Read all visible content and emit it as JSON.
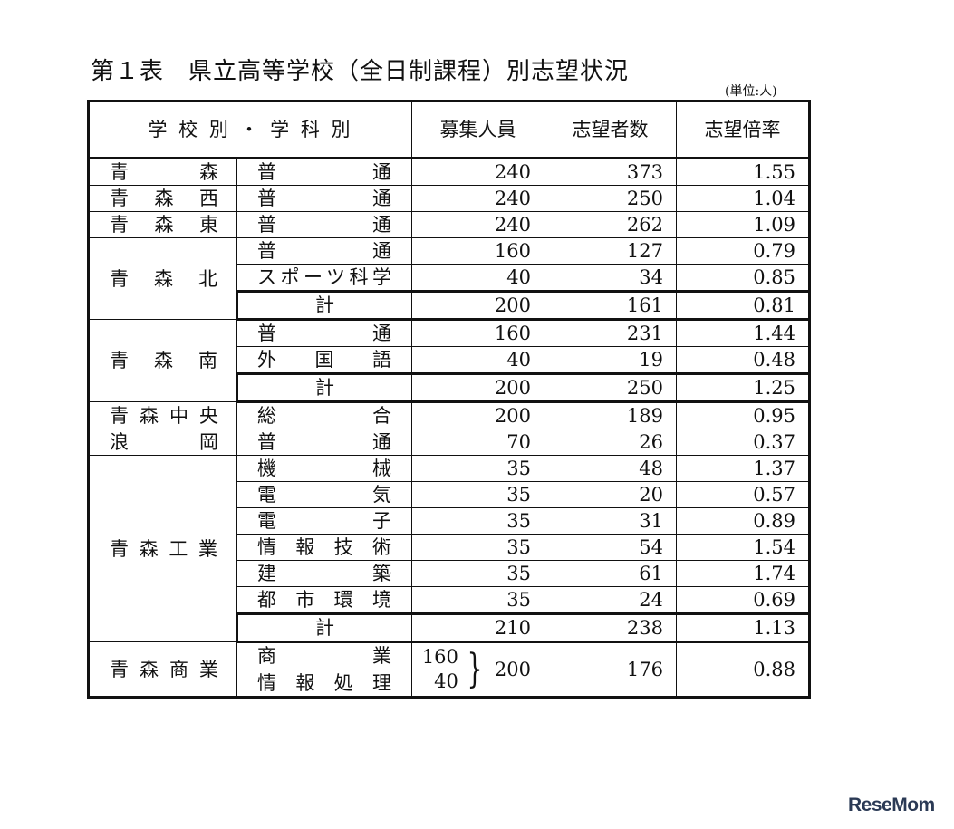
{
  "title": "第１表　県立高等学校（全日制課程）別志望状況",
  "unit": "(単位:人)",
  "headers": {
    "school_dept": "学 校 別 ・ 学 科 別",
    "capacity": "募集人員",
    "applicants": "志望者数",
    "ratio": "志望倍率"
  },
  "schools": [
    {
      "name": "青森",
      "departments": [
        {
          "name": "普通",
          "capacity": "240",
          "applicants": "373",
          "ratio": "1.55"
        }
      ]
    },
    {
      "name": "青森西",
      "departments": [
        {
          "name": "普通",
          "capacity": "240",
          "applicants": "250",
          "ratio": "1.04"
        }
      ]
    },
    {
      "name": "青森東",
      "departments": [
        {
          "name": "普通",
          "capacity": "240",
          "applicants": "262",
          "ratio": "1.09"
        }
      ]
    },
    {
      "name": "青森北",
      "departments": [
        {
          "name": "普通",
          "capacity": "160",
          "applicants": "127",
          "ratio": "0.79"
        },
        {
          "name": "スポーツ科学",
          "capacity": "40",
          "applicants": "34",
          "ratio": "0.85"
        },
        {
          "name": "計",
          "total": true,
          "capacity": "200",
          "applicants": "161",
          "ratio": "0.81"
        }
      ]
    },
    {
      "name": "青森南",
      "departments": [
        {
          "name": "普通",
          "capacity": "160",
          "applicants": "231",
          "ratio": "1.44"
        },
        {
          "name": "外国語",
          "capacity": "40",
          "applicants": "19",
          "ratio": "0.48"
        },
        {
          "name": "計",
          "total": true,
          "capacity": "200",
          "applicants": "250",
          "ratio": "1.25"
        }
      ]
    },
    {
      "name": "青森中央",
      "departments": [
        {
          "name": "総合",
          "capacity": "200",
          "applicants": "189",
          "ratio": "0.95"
        }
      ]
    },
    {
      "name": "浪岡",
      "departments": [
        {
          "name": "普通",
          "capacity": "70",
          "applicants": "26",
          "ratio": "0.37"
        }
      ]
    },
    {
      "name": "青森工業",
      "departments": [
        {
          "name": "機械",
          "capacity": "35",
          "applicants": "48",
          "ratio": "1.37"
        },
        {
          "name": "電気",
          "capacity": "35",
          "applicants": "20",
          "ratio": "0.57"
        },
        {
          "name": "電子",
          "capacity": "35",
          "applicants": "31",
          "ratio": "0.89"
        },
        {
          "name": "情報技術",
          "capacity": "35",
          "applicants": "54",
          "ratio": "1.54"
        },
        {
          "name": "建築",
          "capacity": "35",
          "applicants": "61",
          "ratio": "1.74"
        },
        {
          "name": "都市環境",
          "capacity": "35",
          "applicants": "24",
          "ratio": "0.69"
        },
        {
          "name": "計",
          "total": true,
          "capacity": "210",
          "applicants": "238",
          "ratio": "1.13"
        }
      ]
    }
  ],
  "commerce": {
    "name": "青森商業",
    "departments": [
      {
        "name": "商業",
        "capacity": "160"
      },
      {
        "name": "情報処理",
        "capacity": "40"
      }
    ],
    "capacity_total": "200",
    "applicants": "176",
    "ratio": "0.88"
  },
  "logo": "ReseMom"
}
